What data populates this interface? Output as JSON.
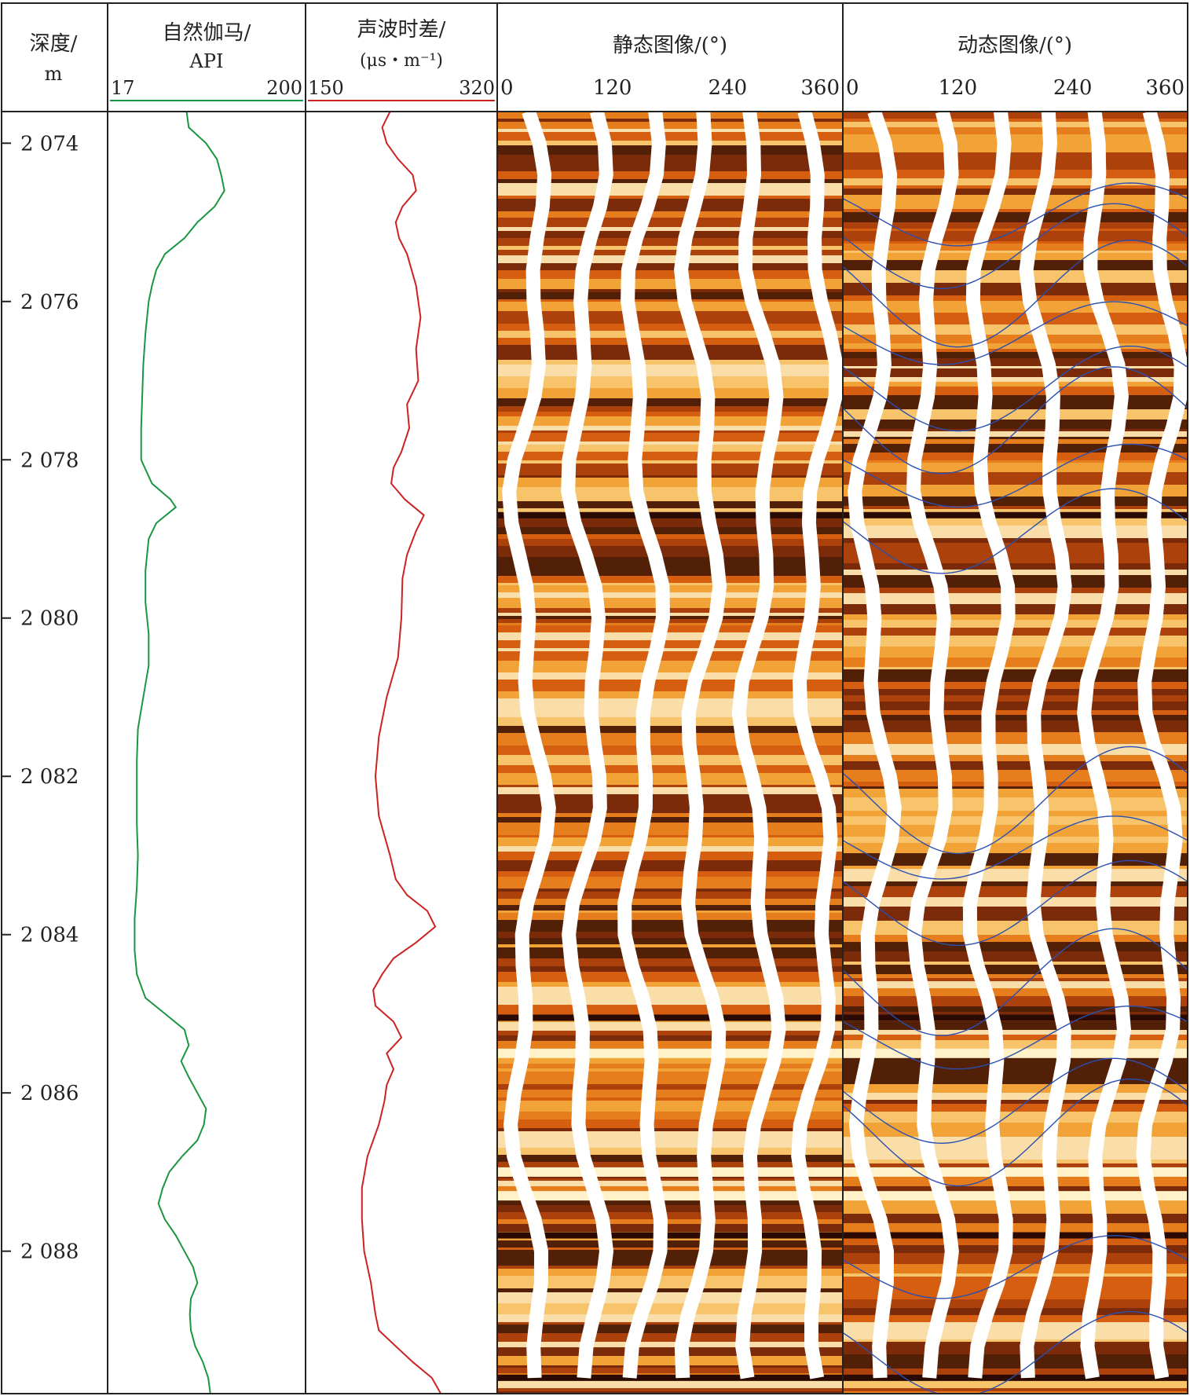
{
  "chart_data": {
    "type": "well-log",
    "depth_axis": {
      "label_line1": "深度/",
      "label_line2": "m",
      "range": [
        2073.6,
        2089.8
      ],
      "tick_labels": [
        "2 074",
        "2 076",
        "2 078",
        "2 080",
        "2 082",
        "2 084",
        "2 086",
        "2 088"
      ],
      "tick_values": [
        2074,
        2076,
        2078,
        2080,
        2082,
        2084,
        2086,
        2088
      ]
    },
    "tracks": [
      {
        "title_line1": "自然伽马/",
        "title_line2": "API",
        "scale_min": "17",
        "scale_max": "200",
        "range": [
          17,
          200
        ],
        "color": "#1a9641",
        "depth": [
          2073.6,
          2073.8,
          2074.0,
          2074.2,
          2074.4,
          2074.6,
          2074.8,
          2075.0,
          2075.2,
          2075.4,
          2075.6,
          2075.8,
          2076.0,
          2076.4,
          2076.8,
          2077.2,
          2077.6,
          2078.0,
          2078.3,
          2078.5,
          2078.6,
          2078.8,
          2079.0,
          2079.4,
          2079.8,
          2080.2,
          2080.6,
          2081.0,
          2081.4,
          2081.8,
          2082.2,
          2082.6,
          2083.0,
          2083.4,
          2083.8,
          2084.2,
          2084.5,
          2084.8,
          2085.0,
          2085.2,
          2085.4,
          2085.6,
          2085.8,
          2086.0,
          2086.2,
          2086.4,
          2086.6,
          2086.8,
          2087.0,
          2087.2,
          2087.4,
          2087.6,
          2087.8,
          2088.0,
          2088.2,
          2088.4,
          2088.6,
          2088.8,
          2089.0,
          2089.2,
          2089.4,
          2089.6,
          2089.8
        ],
        "values": [
          90,
          92,
          108,
          118,
          122,
          125,
          116,
          100,
          88,
          70,
          62,
          58,
          55,
          52,
          50,
          49,
          48,
          48,
          58,
          75,
          80,
          62,
          55,
          52,
          52,
          55,
          55,
          50,
          45,
          44,
          44,
          44,
          45,
          44,
          42,
          42,
          44,
          52,
          70,
          88,
          92,
          85,
          92,
          100,
          108,
          106,
          100,
          86,
          74,
          68,
          64,
          70,
          80,
          88,
          96,
          100,
          94,
          93,
          94,
          98,
          105,
          110,
          112
        ]
      },
      {
        "title_line1": "声波时差/",
        "title_line2": "(μs・m⁻¹)",
        "scale_min": "150",
        "scale_max": "320",
        "range": [
          150,
          320
        ],
        "color": "#cc2222",
        "depth": [
          2073.6,
          2073.8,
          2074.0,
          2074.2,
          2074.4,
          2074.6,
          2074.8,
          2075.0,
          2075.2,
          2075.4,
          2075.8,
          2076.2,
          2076.6,
          2077.0,
          2077.3,
          2077.6,
          2077.9,
          2078.1,
          2078.3,
          2078.5,
          2078.7,
          2078.9,
          2079.2,
          2079.5,
          2080.0,
          2080.5,
          2081.0,
          2081.5,
          2082.0,
          2082.5,
          2083.0,
          2083.3,
          2083.5,
          2083.7,
          2083.9,
          2084.1,
          2084.3,
          2084.5,
          2084.7,
          2084.9,
          2085.1,
          2085.3,
          2085.5,
          2085.7,
          2085.9,
          2086.1,
          2086.4,
          2086.8,
          2087.2,
          2087.6,
          2088.0,
          2088.4,
          2088.8,
          2089.0,
          2089.2,
          2089.4,
          2089.6,
          2089.8
        ],
        "values": [
          225,
          218,
          222,
          232,
          245,
          248,
          236,
          230,
          233,
          240,
          248,
          252,
          248,
          250,
          240,
          242,
          235,
          228,
          226,
          238,
          255,
          248,
          240,
          236,
          235,
          232,
          222,
          215,
          212,
          215,
          225,
          230,
          240,
          258,
          265,
          248,
          228,
          218,
          210,
          212,
          228,
          235,
          222,
          228,
          222,
          220,
          215,
          205,
          200,
          200,
          202,
          208,
          212,
          215,
          230,
          245,
          262,
          270
        ]
      }
    ],
    "images": [
      {
        "title": "静态图像/(°)",
        "tick_labels": [
          "0",
          "120",
          "240",
          "360"
        ],
        "tick_values": [
          0,
          120,
          240,
          360
        ]
      },
      {
        "title": "动态图像/(°)",
        "tick_labels": [
          "0",
          "120",
          "240",
          "360"
        ],
        "tick_values": [
          0,
          120,
          240,
          360
        ]
      }
    ],
    "colors": {
      "image_dark": "#3a1005",
      "image_mid": "#e06010",
      "image_light": "#ffe9a0",
      "sinusoid": "#2a4fb0"
    }
  }
}
